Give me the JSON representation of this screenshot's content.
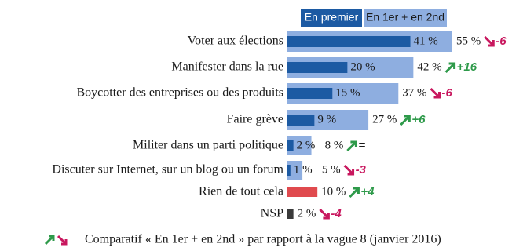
{
  "chart_data": {
    "type": "bar",
    "orientation": "horizontal",
    "categories": [
      "Voter aux élections",
      "Manifester dans la rue",
      "Boycotter des entreprises ou des produits",
      "Faire grève",
      "Militer dans un parti politique",
      "Discuter sur Internet, sur un blog ou un forum",
      "Rien de tout cela",
      "NSP"
    ],
    "series": [
      {
        "name": "En premier",
        "color": "#1c5aa3",
        "values": [
          41,
          20,
          15,
          9,
          2,
          1,
          null,
          null
        ],
        "value_labels": [
          "41 %",
          "20 %",
          "15 %",
          "9 %",
          "2 %",
          "1 %",
          null,
          null
        ]
      },
      {
        "name": "En 1er + en 2nd",
        "color": "#8eaee0",
        "colors": [
          "#8eaee0",
          "#8eaee0",
          "#8eaee0",
          "#8eaee0",
          "#8eaee0",
          "#8eaee0",
          "#e04a4e",
          "#3a3a3a"
        ],
        "values": [
          55,
          42,
          37,
          27,
          8,
          5,
          10,
          2
        ],
        "value_labels": [
          "55 %",
          "42 %",
          "37 %",
          "27 %",
          "8 %",
          "5 %",
          "10 %",
          "2 %"
        ]
      }
    ],
    "changes": {
      "values": [
        -6,
        16,
        -6,
        6,
        0,
        -3,
        4,
        -4
      ],
      "value_labels": [
        "-6",
        "+16",
        "-6",
        "+6",
        "=",
        "-3",
        "+4",
        "-4"
      ],
      "up_color": "#2e9a4a",
      "down_color": "#c8175e"
    },
    "footnote": "Comparatif « En 1er + en 2nd » par rapport à la vague 8 (janvier 2016)"
  }
}
